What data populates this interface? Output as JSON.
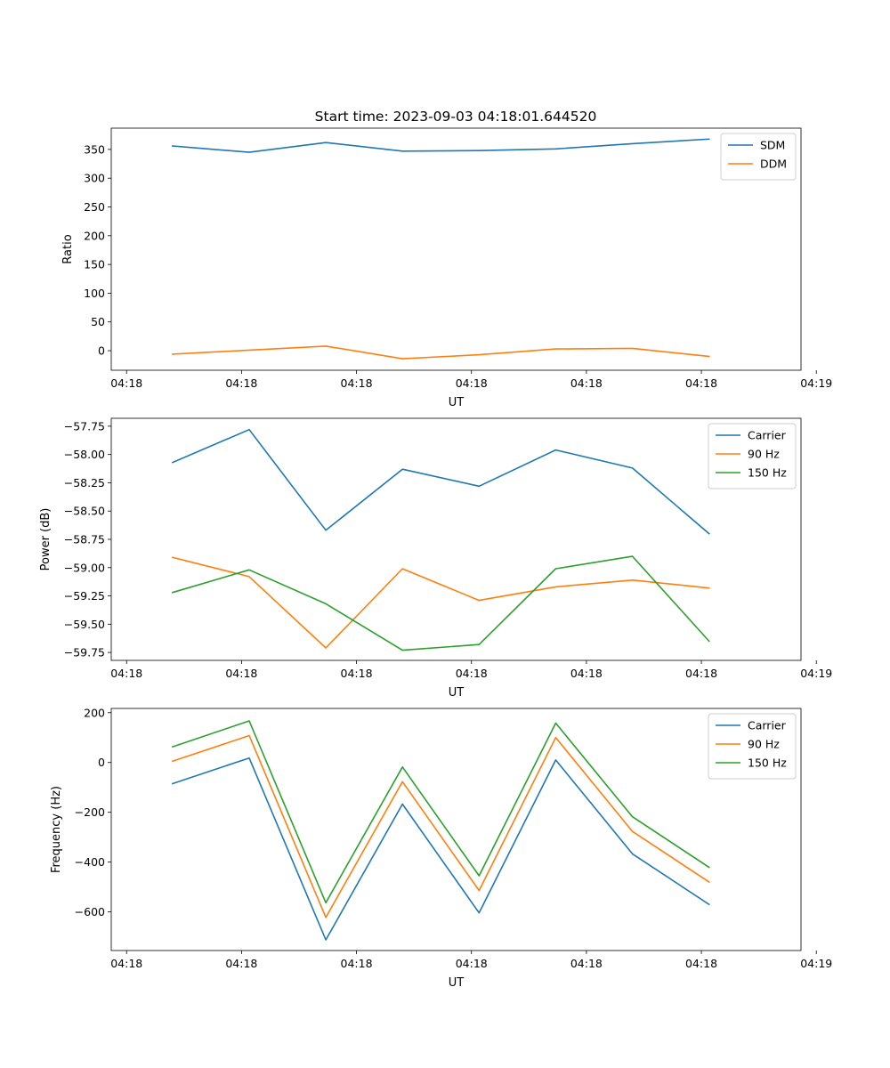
{
  "figure_title": "Start time: 2023-09-03 04:18:01.644520",
  "colors": {
    "series_blue": "#1f77b4",
    "series_orange": "#ff7f0e",
    "series_green": "#2ca02c"
  },
  "chart_data": [
    {
      "type": "line",
      "title": "Start time: 2023-09-03 04:18:01.644520",
      "xlabel": "UT",
      "ylabel": "Ratio",
      "x": [
        1,
        2,
        3,
        4,
        5,
        6,
        7,
        8
      ],
      "xlim": [
        0.2,
        9.2
      ],
      "xticks": [
        0.4,
        1.9,
        3.4,
        4.9,
        6.4,
        7.9,
        9.4
      ],
      "xtick_labels": [
        "04:18",
        "04:18",
        "04:18",
        "04:18",
        "04:18",
        "04:18",
        "04:19"
      ],
      "ylim": [
        -34,
        387
      ],
      "yticks": [
        0,
        50,
        100,
        150,
        200,
        250,
        300,
        350
      ],
      "ytick_labels": [
        "0",
        "50",
        "100",
        "150",
        "200",
        "250",
        "300",
        "350"
      ],
      "legend_position": "top-right",
      "grid": false,
      "series": [
        {
          "name": "SDM",
          "color": "#1f77b4",
          "values": [
            356,
            345,
            362,
            347,
            348,
            351,
            360,
            368
          ]
        },
        {
          "name": "DDM",
          "color": "#ff7f0e",
          "values": [
            -6,
            1,
            8,
            -14,
            -7,
            3,
            4,
            -10
          ]
        }
      ]
    },
    {
      "type": "line",
      "title": "",
      "xlabel": "UT",
      "ylabel": "Power (dB)",
      "x": [
        1,
        2,
        3,
        4,
        5,
        6,
        7,
        8
      ],
      "xlim": [
        0.2,
        9.2
      ],
      "xticks": [
        0.4,
        1.9,
        3.4,
        4.9,
        6.4,
        7.9,
        9.4
      ],
      "xtick_labels": [
        "04:18",
        "04:18",
        "04:18",
        "04:18",
        "04:18",
        "04:18",
        "04:19"
      ],
      "ylim": [
        -59.82,
        -57.68
      ],
      "yticks": [
        -57.75,
        -58.0,
        -58.25,
        -58.5,
        -58.75,
        -59.0,
        -59.25,
        -59.5,
        -59.75
      ],
      "ytick_labels": [
        "−57.75",
        "−58.00",
        "−58.25",
        "−58.50",
        "−58.75",
        "−59.00",
        "−59.25",
        "−59.50",
        "−59.75"
      ],
      "legend_position": "top-right",
      "grid": false,
      "series": [
        {
          "name": "Carrier",
          "color": "#1f77b4",
          "values": [
            -58.07,
            -57.78,
            -58.67,
            -58.13,
            -58.28,
            -57.96,
            -58.12,
            -58.7
          ]
        },
        {
          "name": "90 Hz",
          "color": "#ff7f0e",
          "values": [
            -58.91,
            -59.08,
            -59.71,
            -59.01,
            -59.29,
            -59.17,
            -59.11,
            -59.18
          ]
        },
        {
          "name": "150 Hz",
          "color": "#2ca02c",
          "values": [
            -59.22,
            -59.02,
            -59.32,
            -59.73,
            -59.68,
            -59.01,
            -58.9,
            -59.65
          ]
        }
      ]
    },
    {
      "type": "line",
      "title": "",
      "xlabel": "UT",
      "ylabel": "Frequency (Hz)",
      "x": [
        1,
        2,
        3,
        4,
        5,
        6,
        7,
        8
      ],
      "xlim": [
        0.2,
        9.2
      ],
      "xticks": [
        0.4,
        1.9,
        3.4,
        4.9,
        6.4,
        7.9,
        9.4
      ],
      "xtick_labels": [
        "04:18",
        "04:18",
        "04:18",
        "04:18",
        "04:18",
        "04:18",
        "04:19"
      ],
      "ylim": [
        -755,
        217
      ],
      "yticks": [
        200,
        0,
        -200,
        -400,
        -600
      ],
      "ytick_labels": [
        "200",
        "0",
        "−200",
        "−400",
        "−600"
      ],
      "legend_position": "top-right",
      "grid": false,
      "series": [
        {
          "name": "Carrier",
          "color": "#1f77b4",
          "values": [
            -85,
            18,
            -712,
            -167,
            -604,
            10,
            -367,
            -570
          ]
        },
        {
          "name": "90 Hz",
          "color": "#ff7f0e",
          "values": [
            5,
            108,
            -622,
            -77,
            -514,
            100,
            -277,
            -480
          ]
        },
        {
          "name": "150 Hz",
          "color": "#2ca02c",
          "values": [
            63,
            167,
            -563,
            -18,
            -455,
            158,
            -218,
            -421
          ]
        }
      ]
    }
  ]
}
